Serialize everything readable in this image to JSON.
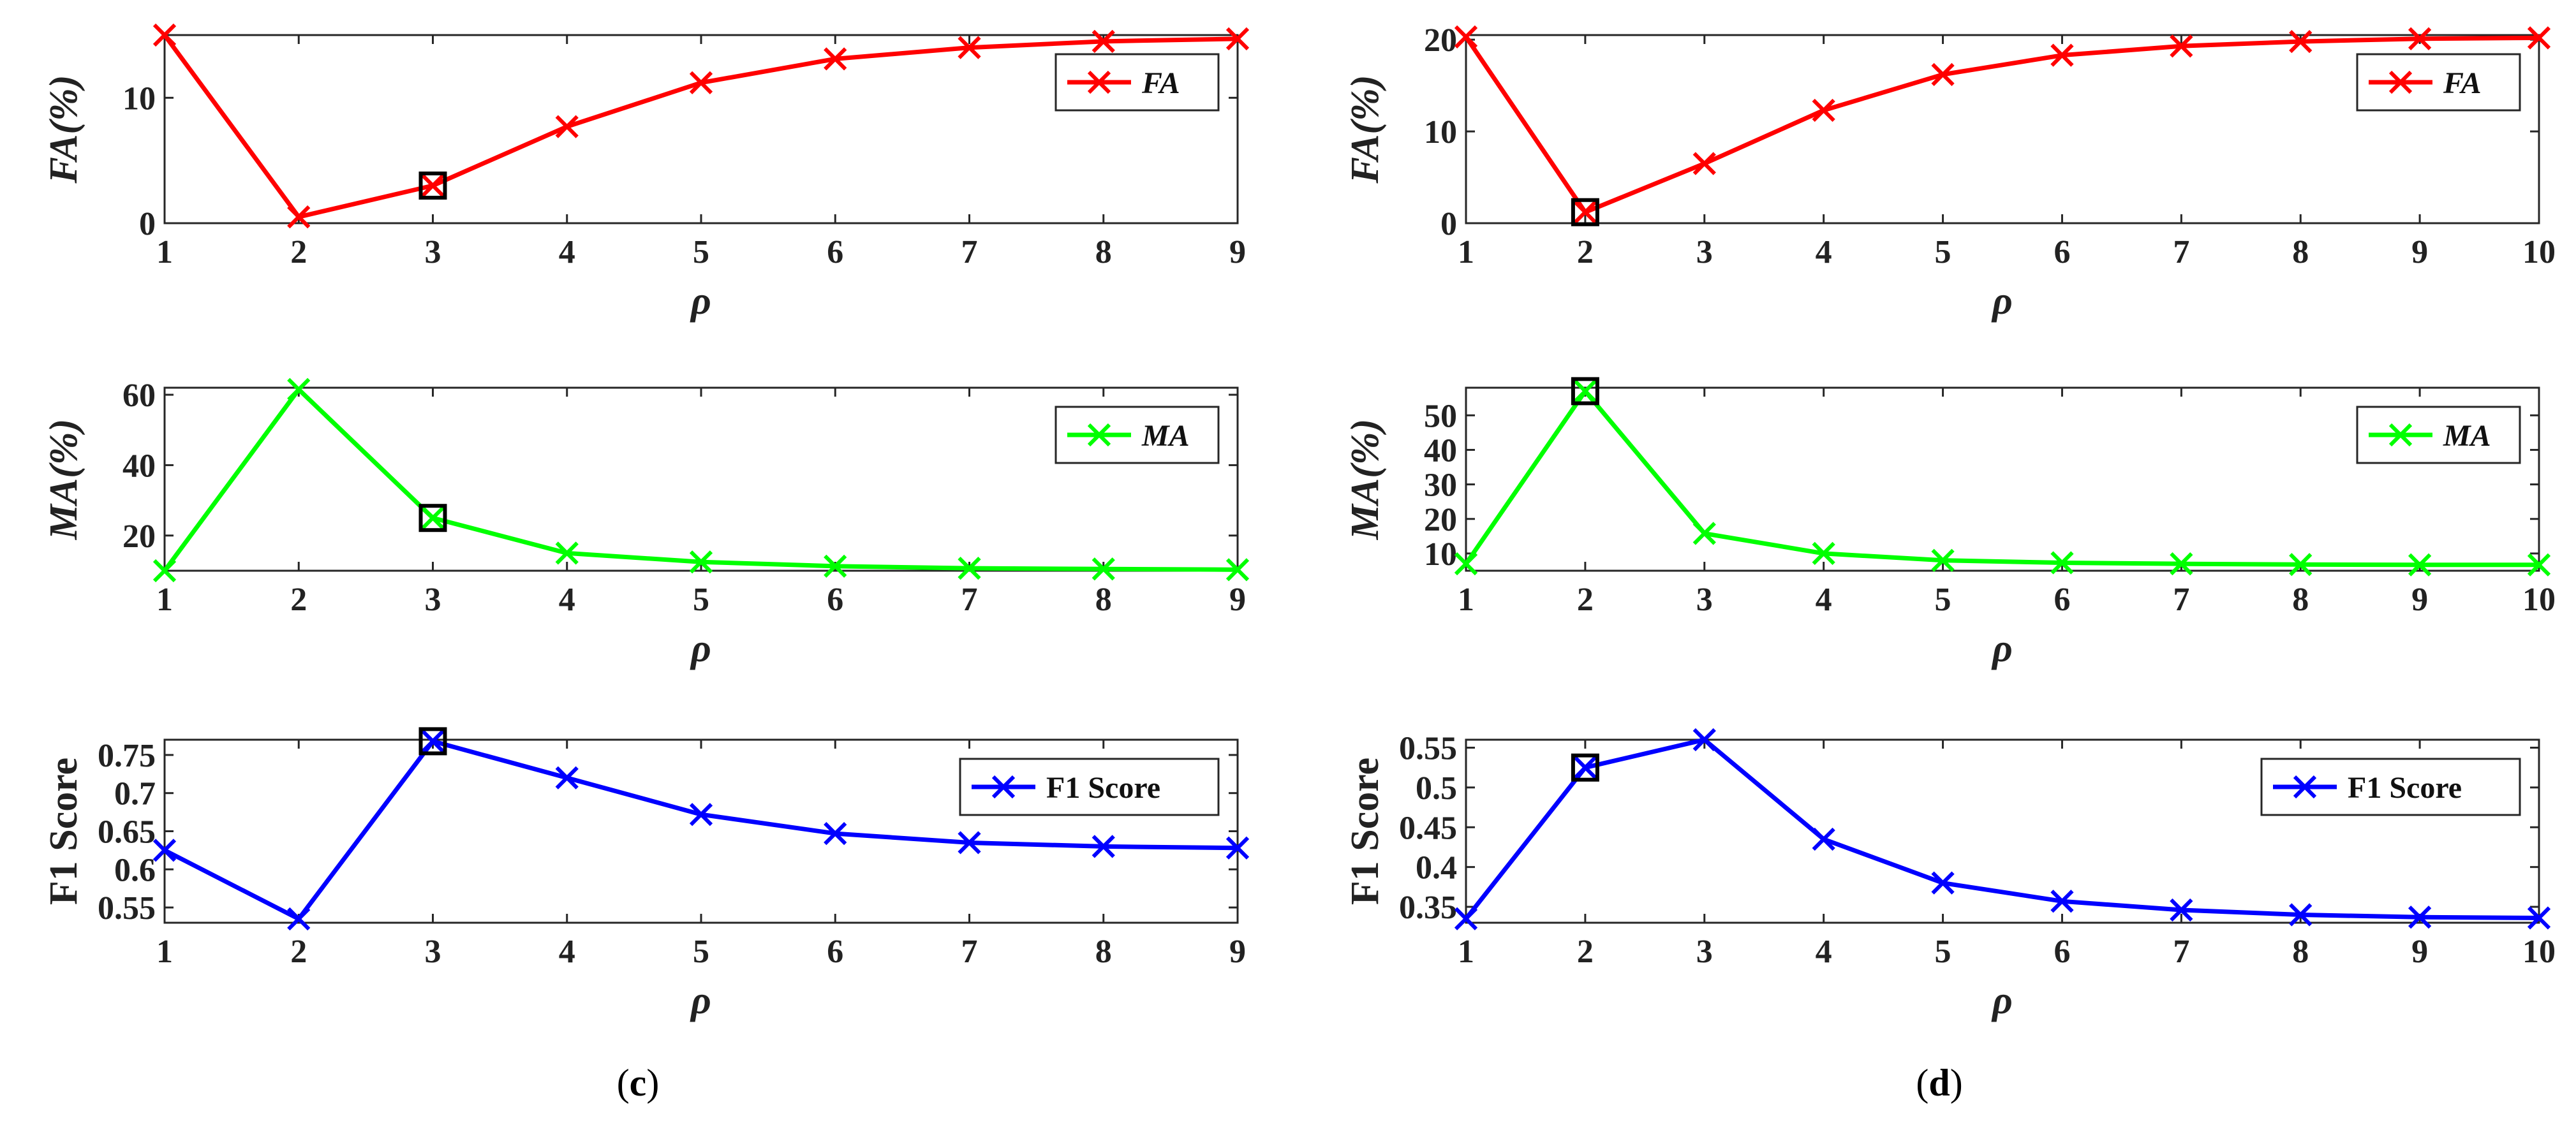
{
  "chart_data": [
    {
      "type": "line",
      "id": "c-fa",
      "panel": "c",
      "title": "",
      "xlabel": "ρ",
      "ylabel": "FA(%)",
      "x": [
        1,
        2,
        3,
        4,
        5,
        6,
        7,
        8,
        9
      ],
      "xlim": [
        1,
        9
      ],
      "ylim": [
        0,
        15
      ],
      "yticks": [
        0,
        10
      ],
      "series": [
        {
          "name": "FA",
          "color": "#ff0000",
          "values": [
            15.0,
            0.5,
            3.0,
            7.7,
            11.2,
            13.1,
            14.0,
            14.5,
            14.7
          ]
        }
      ],
      "highlight_x": 3,
      "legend_italic": true,
      "ylabel_italic": true,
      "legend_position": "top-right"
    },
    {
      "type": "line",
      "id": "c-ma",
      "panel": "c",
      "title": "",
      "xlabel": "ρ",
      "ylabel": "MA(%)",
      "x": [
        1,
        2,
        3,
        4,
        5,
        6,
        7,
        8,
        9
      ],
      "xlim": [
        1,
        9
      ],
      "ylim": [
        10,
        62
      ],
      "yticks": [
        20,
        40,
        60
      ],
      "series": [
        {
          "name": "MA",
          "color": "#00ff00",
          "values": [
            10.0,
            61.5,
            25.0,
            15.0,
            12.5,
            11.3,
            10.7,
            10.5,
            10.3
          ]
        }
      ],
      "highlight_x": 3,
      "legend_italic": true,
      "ylabel_italic": true,
      "legend_position": "top-right"
    },
    {
      "type": "line",
      "id": "c-f1",
      "panel": "c",
      "title": "",
      "xlabel": "ρ",
      "ylabel": "F1 Score",
      "x": [
        1,
        2,
        3,
        4,
        5,
        6,
        7,
        8,
        9
      ],
      "xlim": [
        1,
        9
      ],
      "ylim": [
        0.53,
        0.77
      ],
      "yticks": [
        0.55,
        0.6,
        0.65,
        0.7,
        0.75
      ],
      "ytick_labels": [
        "0.55",
        "0.6",
        "0.65",
        "0.7",
        "0.75"
      ],
      "series": [
        {
          "name": "F1 Score",
          "color": "#0000ff",
          "values": [
            0.625,
            0.535,
            0.768,
            0.72,
            0.672,
            0.647,
            0.635,
            0.63,
            0.628
          ]
        }
      ],
      "highlight_x": 3,
      "legend_italic": false,
      "ylabel_italic": false,
      "legend_position": "top-right"
    },
    {
      "type": "line",
      "id": "d-fa",
      "panel": "d",
      "title": "",
      "xlabel": "ρ",
      "ylabel": "FA(%)",
      "x": [
        1,
        2,
        3,
        4,
        5,
        6,
        7,
        8,
        9,
        10
      ],
      "xlim": [
        1,
        10
      ],
      "ylim": [
        0,
        20.5
      ],
      "yticks": [
        0,
        10,
        20
      ],
      "series": [
        {
          "name": "FA",
          "color": "#ff0000",
          "values": [
            20.3,
            1.2,
            6.5,
            12.3,
            16.2,
            18.3,
            19.3,
            19.8,
            20.1,
            20.2
          ]
        }
      ],
      "highlight_x": 2,
      "legend_italic": true,
      "ylabel_italic": true,
      "legend_position": "top-right"
    },
    {
      "type": "line",
      "id": "d-ma",
      "panel": "d",
      "title": "",
      "xlabel": "ρ",
      "ylabel": "MA(%)",
      "x": [
        1,
        2,
        3,
        4,
        5,
        6,
        7,
        8,
        9,
        10
      ],
      "xlim": [
        1,
        10
      ],
      "ylim": [
        5,
        58
      ],
      "yticks": [
        10,
        20,
        30,
        40,
        50
      ],
      "series": [
        {
          "name": "MA",
          "color": "#00ff00",
          "values": [
            7.0,
            57.0,
            15.8,
            10.0,
            8.0,
            7.3,
            7.0,
            6.8,
            6.7,
            6.7
          ]
        }
      ],
      "highlight_x": 2,
      "legend_italic": true,
      "ylabel_italic": true,
      "legend_position": "top-right"
    },
    {
      "type": "line",
      "id": "d-f1",
      "panel": "d",
      "title": "",
      "xlabel": "ρ",
      "ylabel": "F1 Score",
      "x": [
        1,
        2,
        3,
        4,
        5,
        6,
        7,
        8,
        9,
        10
      ],
      "xlim": [
        1,
        10
      ],
      "ylim": [
        0.33,
        0.56
      ],
      "yticks": [
        0.35,
        0.4,
        0.45,
        0.5,
        0.55
      ],
      "ytick_labels": [
        "0.35",
        "0.4",
        "0.45",
        "0.5",
        "0.55"
      ],
      "series": [
        {
          "name": "F1 Score",
          "color": "#0000ff",
          "values": [
            0.335,
            0.525,
            0.56,
            0.435,
            0.38,
            0.357,
            0.346,
            0.34,
            0.337,
            0.336
          ]
        }
      ],
      "highlight_x": 2,
      "legend_italic": false,
      "ylabel_italic": false,
      "legend_position": "top-right"
    }
  ],
  "captions": {
    "c": "c",
    "d": "d"
  }
}
